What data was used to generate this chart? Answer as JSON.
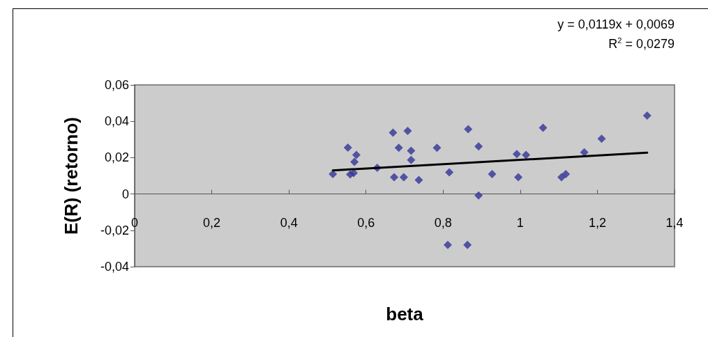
{
  "chart_data": {
    "type": "scatter",
    "xlabel": "beta",
    "ylabel": "E(R) (retorno)",
    "annotations": [
      "y = 0,0119x + 0,0069",
      "R$^{2}$ = 0,0279"
    ],
    "xlim": [
      0,
      1.4
    ],
    "ylim": [
      -0.04,
      0.06
    ],
    "xticks": [
      0,
      {
        "value": 0.2,
        "label": "0,2"
      },
      {
        "value": 0.4,
        "label": "0,4"
      },
      {
        "value": 0.6,
        "label": "0,6"
      },
      {
        "value": 0.8,
        "label": "0,8"
      },
      1,
      {
        "value": 1.2,
        "label": "1,2"
      },
      {
        "value": 1.4,
        "label": "1,4"
      }
    ],
    "yticks": [
      {
        "value": -0.04,
        "label": "-0,04"
      },
      {
        "value": -0.02,
        "label": "-0,02"
      },
      0,
      {
        "value": 0.02,
        "label": "0,02"
      },
      {
        "value": 0.04,
        "label": "0,04"
      },
      {
        "value": 0.06,
        "label": "0,06"
      }
    ],
    "grid": false,
    "series": [
      {
        "type": "scatter",
        "color": "#333399",
        "marker": "diamond",
        "x": [
          0.514,
          0.553,
          0.559,
          0.568,
          0.57,
          0.575,
          0.629,
          0.67,
          0.708,
          0.685,
          0.717,
          0.717,
          0.673,
          0.698,
          0.737,
          0.784,
          0.816,
          0.865,
          0.892,
          0.927,
          0.892,
          0.812,
          0.863,
          0.991,
          1.015,
          0.995,
          1.059,
          1.107,
          1.118,
          1.166,
          1.211,
          1.329
        ],
        "values": [
          0.011,
          0.0255,
          0.0108,
          0.0115,
          0.0177,
          0.0215,
          0.0144,
          0.0338,
          0.0347,
          0.0254,
          0.0238,
          0.0187,
          0.0092,
          0.0092,
          0.0077,
          0.0254,
          0.0119,
          0.0357,
          0.0262,
          0.011,
          -0.0008,
          -0.028,
          -0.028,
          0.022,
          0.0215,
          0.0092,
          0.0364,
          0.0092,
          0.011,
          0.0229,
          0.0304,
          0.0431
        ]
      },
      {
        "type": "line",
        "color": "#000000",
        "marker": "none",
        "line_style": "solid",
        "x": [
          0.514,
          1.329
        ],
        "values": [
          0.013,
          0.0227
        ]
      }
    ]
  }
}
